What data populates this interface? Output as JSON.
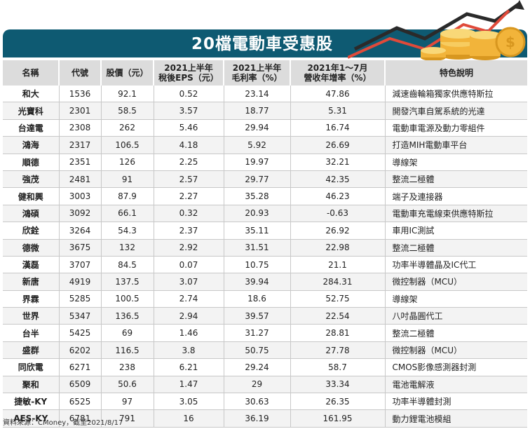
{
  "title": "20檔電動車受惠股",
  "headers": [
    {
      "line1": "名稱",
      "line2": ""
    },
    {
      "line1": "代號",
      "line2": ""
    },
    {
      "line1": "股價（元）",
      "line2": ""
    },
    {
      "line1": "2021上半年",
      "line2": "稅後EPS（元）"
    },
    {
      "line1": "2021上半年",
      "line2": "毛利率（%）"
    },
    {
      "line1": "2021年1～7月",
      "line2": "營收年增率（%）"
    },
    {
      "line1": "特色說明",
      "line2": ""
    }
  ],
  "rows": [
    [
      "和大",
      "1536",
      "92.1",
      "0.52",
      "23.14",
      "47.86",
      "減速齒輪箱獨家供應特斯拉"
    ],
    [
      "光寶科",
      "2301",
      "58.5",
      "3.57",
      "18.77",
      "5.31",
      "開發汽車自駕系統的光達"
    ],
    [
      "台達電",
      "2308",
      "262",
      "5.46",
      "29.94",
      "16.74",
      "電動車電源及動力零組件"
    ],
    [
      "鴻海",
      "2317",
      "106.5",
      "4.18",
      "5.92",
      "26.69",
      "打造MIH電動車平台"
    ],
    [
      "順德",
      "2351",
      "126",
      "2.25",
      "19.97",
      "32.21",
      "導線架"
    ],
    [
      "強茂",
      "2481",
      "91",
      "2.57",
      "29.77",
      "42.35",
      "整流二極體"
    ],
    [
      "健和興",
      "3003",
      "87.9",
      "2.27",
      "35.28",
      "46.23",
      "端子及連接器"
    ],
    [
      "鴻碩",
      "3092",
      "66.1",
      "0.32",
      "20.93",
      "-0.63",
      "電動車充電線束供應特斯拉"
    ],
    [
      "欣銓",
      "3264",
      "54.3",
      "2.37",
      "35.11",
      "26.92",
      "車用IC測試"
    ],
    [
      "德微",
      "3675",
      "132",
      "2.92",
      "31.51",
      "22.98",
      "整流二極體"
    ],
    [
      "漢磊",
      "3707",
      "84.5",
      "0.07",
      "10.75",
      "21.1",
      "功率半導體晶及IC代工"
    ],
    [
      "新唐",
      "4919",
      "137.5",
      "3.07",
      "39.94",
      "284.31",
      "微控制器（MCU）"
    ],
    [
      "界霖",
      "5285",
      "100.5",
      "2.74",
      "18.6",
      "52.75",
      "導線架"
    ],
    [
      "世界",
      "5347",
      "136.5",
      "2.94",
      "39.57",
      "22.54",
      "八吋晶圓代工"
    ],
    [
      "台半",
      "5425",
      "69",
      "1.46",
      "31.27",
      "28.81",
      "整流二極體"
    ],
    [
      "盛群",
      "6202",
      "116.5",
      "3.8",
      "50.75",
      "27.78",
      "微控制器（MCU）"
    ],
    [
      "同欣電",
      "6271",
      "238",
      "6.21",
      "29.24",
      "58.7",
      "CMOS影像感測器封測"
    ],
    [
      "聚和",
      "6509",
      "50.6",
      "1.47",
      "29",
      "33.34",
      "電池電解液"
    ],
    [
      "捷敏-KY",
      "6525",
      "97",
      "3.05",
      "30.63",
      "26.35",
      "功率半導體封測"
    ],
    [
      "AES-KY",
      "6781",
      "791",
      "16",
      "36.19",
      "161.95",
      "動力鋰電池模組"
    ]
  ],
  "source": "資料來源：CMoney，截至2021/8/17",
  "colors": {
    "banner": "#0e5a72",
    "header_bg": "#dcdcdc",
    "coin": "#f2b43a",
    "arrow_dark": "#2a2a2a",
    "arrow_red": "#e04a3a"
  },
  "decoration_icon": "coins-and-rising-arrow-icon"
}
